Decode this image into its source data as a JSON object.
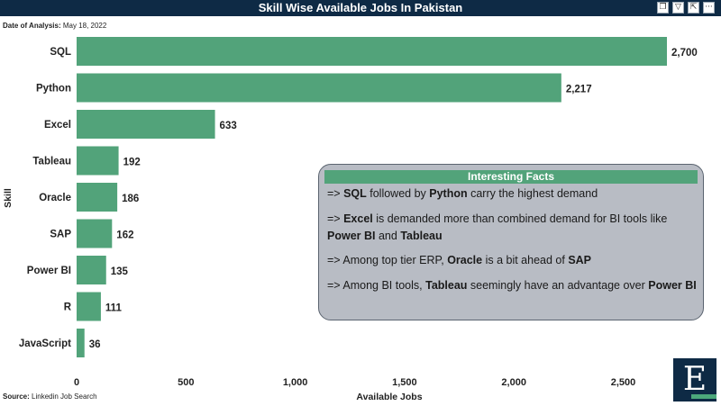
{
  "title": "Skill Wise Available Jobs In Pakistan",
  "toolbar": {
    "icons": [
      "copy-icon",
      "filter-icon",
      "focus-mode-icon",
      "more-options-icon"
    ],
    "more_label": "···"
  },
  "date": {
    "label": "Date of Analysis:",
    "value": "May 18, 2022"
  },
  "source": {
    "label": "Source:",
    "value": "Linkedin Job Search"
  },
  "facts": {
    "heading": "Interesting Facts",
    "items": [
      [
        {
          "t": "=> "
        },
        {
          "t": "SQL",
          "b": true
        },
        {
          "t": " followed by "
        },
        {
          "t": "Python",
          "b": true
        },
        {
          "t": " carry the highest demand"
        }
      ],
      [
        {
          "t": "=> "
        },
        {
          "t": "Excel",
          "b": true
        },
        {
          "t": " is demanded more than combined demand for BI tools like "
        },
        {
          "t": "Power BI",
          "b": true
        },
        {
          "t": " and "
        },
        {
          "t": "Tableau",
          "b": true
        }
      ],
      [
        {
          "t": "=> Among top tier ERP, "
        },
        {
          "t": "Oracle",
          "b": true
        },
        {
          "t": " is a bit ahead of "
        },
        {
          "t": "SAP",
          "b": true
        }
      ],
      [
        {
          "t": "=> Among BI tools, "
        },
        {
          "t": "Tableau",
          "b": true
        },
        {
          "t": " seemingly have an advantage over "
        },
        {
          "t": "Power BI",
          "b": true
        }
      ]
    ]
  },
  "logo": {
    "letter": "E"
  },
  "colors": {
    "bar": "#52a37a",
    "header": "#0e2a45",
    "panel": "#b8bcc4"
  },
  "chart_data": {
    "type": "bar",
    "orientation": "horizontal",
    "categories": [
      "SQL",
      "Python",
      "Excel",
      "Tableau",
      "Oracle",
      "SAP",
      "Power BI",
      "R",
      "JavaScript"
    ],
    "values": [
      2700,
      2217,
      633,
      192,
      186,
      162,
      135,
      111,
      36
    ],
    "value_labels": [
      "2,700",
      "2,217",
      "633",
      "192",
      "186",
      "162",
      "135",
      "111",
      "36"
    ],
    "xlabel": "Available Jobs",
    "ylabel": "Skill",
    "xlim": [
      0,
      2700
    ],
    "xticks": [
      0,
      500,
      1000,
      1500,
      2000,
      2500
    ],
    "xtick_labels": [
      "0",
      "500",
      "1,000",
      "1,500",
      "2,000",
      "2,500"
    ],
    "grid": false
  }
}
